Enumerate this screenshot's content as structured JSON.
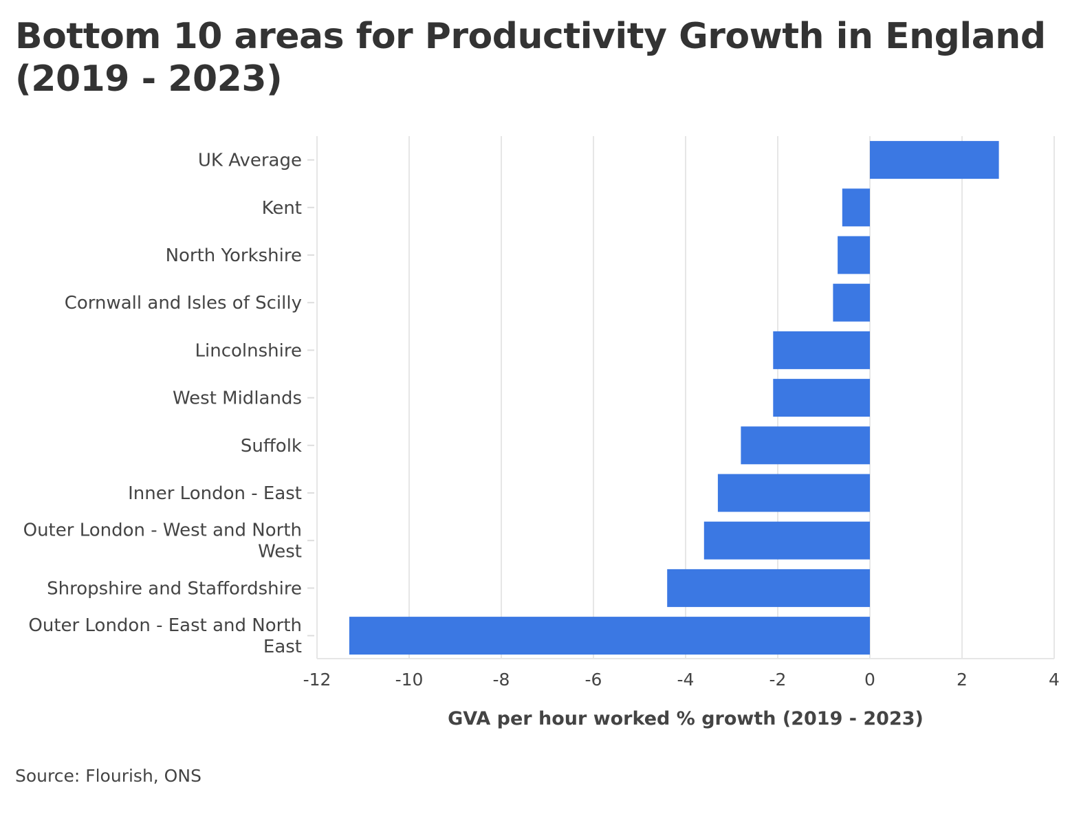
{
  "chart_data": {
    "type": "bar",
    "orientation": "horizontal",
    "title": "Bottom 10 areas for Productivity Growth in England (2019 - 2023)",
    "xlabel": "GVA per hour worked % growth (2019 - 2023)",
    "ylabel": "",
    "xlim": [
      -12,
      4
    ],
    "xticks": [
      -12,
      -10,
      -8,
      -6,
      -4,
      -2,
      0,
      2,
      4
    ],
    "grid": true,
    "legend": "none",
    "bar_color": "#3b78e3",
    "categories": [
      "UK Average",
      "Kent",
      "North Yorkshire",
      "Cornwall and Isles of Scilly",
      "Lincolnshire",
      "West Midlands",
      "Suffolk",
      "Inner London - East",
      "Outer London - West and North West",
      "Shropshire and Staffordshire",
      "Outer London - East and North East"
    ],
    "category_lines": [
      [
        "UK Average"
      ],
      [
        "Kent"
      ],
      [
        "North Yorkshire"
      ],
      [
        "Cornwall and Isles of Scilly"
      ],
      [
        "Lincolnshire"
      ],
      [
        "West Midlands"
      ],
      [
        "Suffolk"
      ],
      [
        "Inner London - East"
      ],
      [
        "Outer London - West and North",
        "West"
      ],
      [
        "Shropshire and Staffordshire"
      ],
      [
        "Outer London - East and North",
        "East"
      ]
    ],
    "values": [
      2.8,
      -0.6,
      -0.7,
      -0.8,
      -2.1,
      -2.1,
      -2.8,
      -3.3,
      -3.6,
      -4.4,
      -11.3
    ]
  },
  "source": "Source: Flourish, ONS",
  "colors": {
    "bar": "#3b78e3",
    "grid": "#e6e6e6",
    "text": "#333333",
    "label": "#444444"
  }
}
